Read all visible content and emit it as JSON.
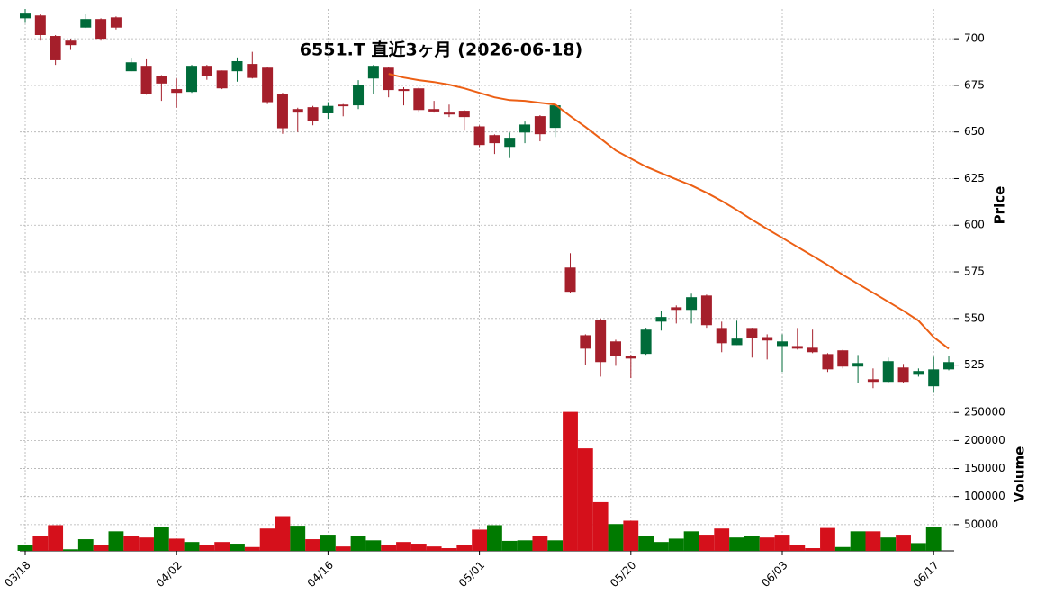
{
  "chart_data": {
    "type": "candlestick",
    "title": "6551.T  直近3ヶ月  (2026-06-18)",
    "ylabel": "Price",
    "y2label": "Volume",
    "categories": [
      "03/18",
      null,
      null,
      null,
      null,
      null,
      null,
      null,
      null,
      null,
      "04/02",
      null,
      null,
      null,
      null,
      null,
      null,
      null,
      null,
      null,
      "04/16",
      null,
      null,
      null,
      null,
      null,
      null,
      null,
      null,
      null,
      "05/01",
      null,
      null,
      null,
      null,
      null,
      null,
      null,
      null,
      null,
      "05/20",
      null,
      null,
      null,
      null,
      null,
      null,
      null,
      null,
      null,
      "06/03",
      null,
      null,
      null,
      null,
      null,
      null,
      null,
      null,
      null,
      "06/17",
      null
    ],
    "open": [
      711,
      712.5,
      701.5,
      699,
      706,
      710.6,
      711.5,
      682.6,
      685.5,
      680,
      673,
      671.5,
      685.5,
      683,
      682.6,
      686.5,
      684.5,
      670.5,
      662.3,
      663.3,
      660,
      664.7,
      664.3,
      678.7,
      684.5,
      673,
      673.4,
      662.3,
      660.4,
      661.4,
      653,
      648.3,
      642,
      649.7,
      658.5,
      652.2,
      577.3,
      541,
      549.3,
      537.7,
      530,
      531,
      548.3,
      556,
      554.6,
      562.3,
      544.9,
      535.7,
      544.9,
      540,
      535.2,
      535.2,
      534.3,
      530.9,
      532.9,
      524.2,
      517.4,
      516,
      523.7,
      519.8,
      513.6,
      522.7
    ],
    "high": [
      716,
      713.5,
      702,
      700,
      713.5,
      711,
      712,
      689.4,
      689,
      680.5,
      678.7,
      686,
      686,
      683,
      690,
      693,
      685,
      671,
      663,
      664,
      666,
      665,
      677.8,
      686,
      685,
      674,
      674,
      666.7,
      664.7,
      661.8,
      653.5,
      648.7,
      649.7,
      655.6,
      659,
      665.7,
      585,
      541.5,
      550,
      538.6,
      530.5,
      545,
      554,
      557,
      563.3,
      562.8,
      548.3,
      548.8,
      545,
      541.5,
      541.5,
      544.9,
      544,
      531.4,
      533.3,
      530.4,
      523.2,
      529,
      525.6,
      523.2,
      529.5,
      530
    ],
    "low": [
      709,
      699,
      686,
      694,
      705.8,
      699,
      705,
      682.6,
      670,
      666.7,
      663,
      671,
      678,
      673,
      677,
      678.7,
      665,
      649,
      650,
      653.6,
      657,
      658.4,
      662.3,
      670.5,
      668.6,
      664.3,
      660.4,
      660.4,
      658,
      650.7,
      642,
      638.2,
      636,
      644,
      645,
      647.3,
      563.8,
      525,
      518.8,
      524.6,
      518,
      530.5,
      543.5,
      547.3,
      547.3,
      545,
      531.9,
      535.7,
      529,
      528,
      521.3,
      533.3,
      531.4,
      521.3,
      523.2,
      515.5,
      512.6,
      515.5,
      515.5,
      518.8,
      510.1,
      522.2
    ],
    "close": [
      714,
      702,
      688.5,
      696.6,
      710.6,
      700,
      706,
      687.4,
      670.5,
      676,
      671,
      685.5,
      680,
      673.4,
      688,
      679,
      666,
      652,
      660.4,
      656,
      664,
      663.8,
      675.4,
      685.5,
      672.5,
      672,
      661.8,
      661,
      659.4,
      658,
      643,
      644,
      646.9,
      654,
      648.8,
      664.3,
      564.3,
      533.8,
      526.6,
      530,
      528.5,
      544,
      550.8,
      554.6,
      561.4,
      546.4,
      536.7,
      539.2,
      539.6,
      538.2,
      537.7,
      533.8,
      531.9,
      522.7,
      524.2,
      526.1,
      516,
      527.1,
      516,
      521.8,
      522.7,
      526.6
    ],
    "up_color": "#006b3a",
    "down_color": "#a51f2b",
    "ma": {
      "color": "#ec5f14",
      "values": [
        null,
        null,
        null,
        null,
        null,
        null,
        null,
        null,
        null,
        null,
        null,
        null,
        null,
        null,
        null,
        null,
        null,
        null,
        null,
        null,
        null,
        null,
        null,
        null,
        681.2,
        679.2,
        677.8,
        676.8,
        675.4,
        673.4,
        671,
        668.6,
        667.1,
        666.7,
        665.7,
        664.7,
        658.5,
        652.7,
        646.4,
        640.1,
        635.7,
        631.4,
        628,
        624.6,
        621.3,
        617.4,
        613,
        608.2,
        602.9,
        598,
        593.2,
        588.4,
        583.6,
        578.7,
        573.4,
        568.6,
        563.8,
        559,
        554.1,
        548.8,
        540,
        533.8
      ]
    },
    "volume": {
      "values": [
        14000,
        30000,
        49000,
        6000,
        24000,
        14000,
        38000,
        30000,
        27000,
        46000,
        25000,
        19000,
        13000,
        19000,
        16000,
        10000,
        43000,
        65000,
        48000,
        24000,
        32000,
        11000,
        30000,
        22000,
        14000,
        19000,
        16000,
        11000,
        8000,
        14000,
        41000,
        49000,
        21000,
        22000,
        30000,
        22000,
        251000,
        186000,
        90000,
        51000,
        57000,
        30000,
        19000,
        25000,
        38000,
        32000,
        43000,
        27000,
        29000,
        27000,
        32000,
        14000,
        8000,
        44000,
        10000,
        38000,
        38000,
        27000,
        32000,
        17000,
        46000,
        null
      ],
      "colors": [
        "#007a00",
        "#d5101b",
        "#d5101b",
        "#007a00",
        "#007a00",
        "#d5101b",
        "#007a00",
        "#d5101b",
        "#d5101b",
        "#007a00",
        "#d5101b",
        "#007a00",
        "#d5101b",
        "#d5101b",
        "#007a00",
        "#d5101b",
        "#d5101b",
        "#d5101b",
        "#007a00",
        "#d5101b",
        "#007a00",
        "#d5101b",
        "#007a00",
        "#007a00",
        "#d5101b",
        "#d5101b",
        "#d5101b",
        "#d5101b",
        "#d5101b",
        "#d5101b",
        "#d5101b",
        "#007a00",
        "#007a00",
        "#007a00",
        "#d5101b",
        "#007a00",
        "#d5101b",
        "#d5101b",
        "#d5101b",
        "#007a00",
        "#d5101b",
        "#007a00",
        "#007a00",
        "#007a00",
        "#007a00",
        "#d5101b",
        "#d5101b",
        "#007a00",
        "#007a00",
        "#d5101b",
        "#d5101b",
        "#d5101b",
        "#d5101b",
        "#d5101b",
        "#007a00",
        "#007a00",
        "#d5101b",
        "#007a00",
        "#d5101b",
        "#007a00",
        "#007a00",
        null
      ]
    },
    "ylim": [
      505,
      716
    ],
    "yticks": [
      525,
      550,
      575,
      600,
      625,
      650,
      675,
      700
    ],
    "y2lim": [
      0,
      260000
    ],
    "y2ticks": [
      50000,
      100000,
      150000,
      200000,
      250000
    ],
    "grid": true
  }
}
